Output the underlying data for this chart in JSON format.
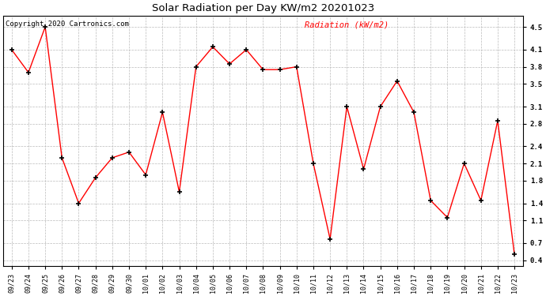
{
  "title": "Solar Radiation per Day KW/m2 20201023",
  "copyright_text": "Copyright 2020 Cartronics.com",
  "legend_label": "Radiation (kW/m2)",
  "dates": [
    "09/23",
    "09/24",
    "09/25",
    "09/26",
    "09/27",
    "09/28",
    "09/29",
    "09/30",
    "10/01",
    "10/02",
    "10/03",
    "10/04",
    "10/05",
    "10/06",
    "10/07",
    "10/08",
    "10/09",
    "10/10",
    "10/11",
    "10/12",
    "10/13",
    "10/14",
    "10/15",
    "10/16",
    "10/17",
    "10/18",
    "10/19",
    "10/20",
    "10/21",
    "10/22",
    "10/23"
  ],
  "values": [
    4.1,
    3.7,
    4.5,
    2.2,
    1.4,
    1.85,
    2.2,
    2.3,
    1.9,
    3.0,
    1.6,
    3.8,
    4.15,
    3.85,
    4.1,
    3.75,
    3.75,
    3.8,
    2.1,
    0.77,
    3.1,
    2.0,
    3.1,
    3.55,
    3.0,
    1.45,
    1.15,
    2.1,
    1.45,
    2.85,
    0.5
  ],
  "ylim": [
    0.3,
    4.7
  ],
  "yticks": [
    0.4,
    0.7,
    1.1,
    1.4,
    1.8,
    2.1,
    2.4,
    2.8,
    3.1,
    3.5,
    3.8,
    4.1,
    4.5
  ],
  "line_color": "red",
  "marker_color": "black",
  "bg_color": "white",
  "grid_color": "#bbbbbb",
  "title_color": "black",
  "copyright_color": "black",
  "legend_color": "red",
  "title_fontsize": 9.5,
  "copyright_fontsize": 6.5,
  "legend_fontsize": 7.5,
  "tick_fontsize": 6.0,
  "ytick_fontsize": 6.5
}
